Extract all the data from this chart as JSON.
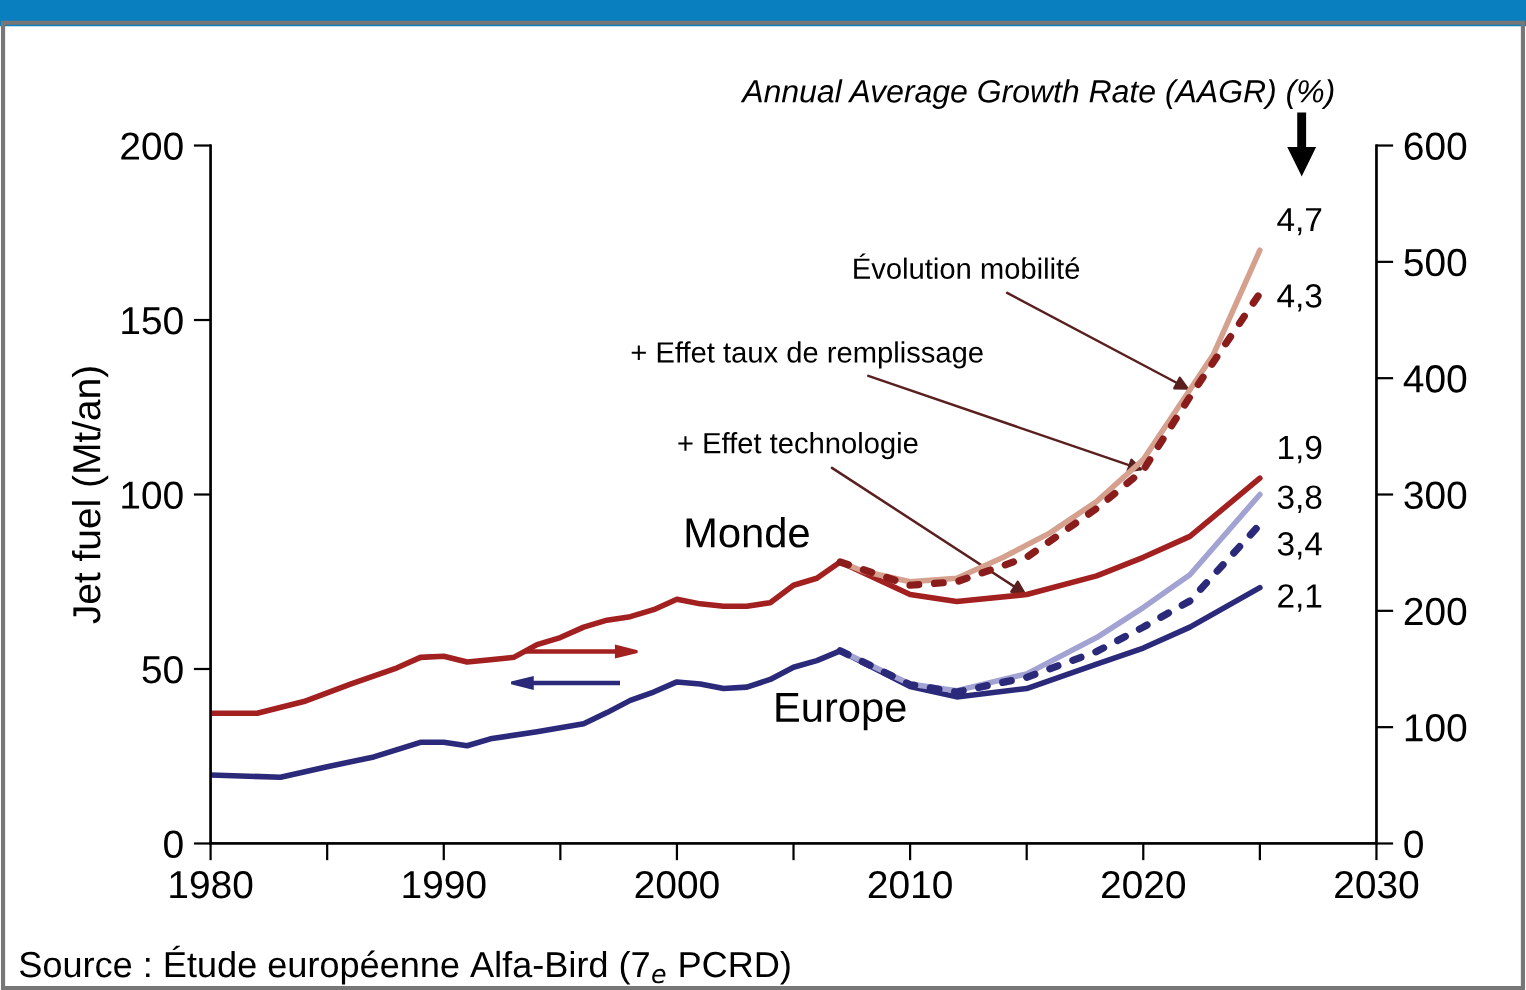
{
  "chart_data": {
    "type": "line",
    "ylabel": "Jet fuel (Mt/an)",
    "xlim": [
      1980,
      2030
    ],
    "xticks": [
      1980,
      {
        "value": 1985,
        "label": null
      },
      1990,
      {
        "value": 1995,
        "label": null
      },
      2000,
      {
        "value": 2005,
        "label": null
      },
      2010,
      {
        "value": 2015,
        "label": null
      },
      2020,
      {
        "value": 2025,
        "label": null
      },
      2030
    ],
    "ylim": [
      0,
      200
    ],
    "yticks": [
      0,
      50,
      100,
      150,
      200
    ],
    "y2lim": [
      0,
      600
    ],
    "y2ticks": [
      0,
      100,
      200,
      300,
      400,
      500,
      600
    ],
    "grid": false,
    "legend": false,
    "marker": "none",
    "series": [
      {
        "axis": "y2",
        "color": "#a32020",
        "line_style": "solid",
        "x": [
          1980,
          1982,
          1984,
          1986,
          1988,
          1989,
          1990,
          1991,
          1992,
          1993,
          1994,
          1995,
          1996,
          1997,
          1998,
          1999,
          2000,
          2001,
          2002,
          2003,
          2004,
          2005,
          2006,
          2007,
          2010,
          2012,
          2015,
          2018,
          2020,
          2022,
          2025
        ],
        "values": [
          112,
          112,
          122,
          137,
          151,
          160,
          161,
          156,
          158,
          160,
          171,
          177,
          186,
          192,
          195,
          201,
          210,
          206,
          204,
          204,
          207,
          222,
          228,
          242,
          214,
          208,
          214,
          230,
          246,
          264,
          314
        ]
      },
      {
        "axis": "y2",
        "color": "#d6a08e",
        "line_style": "solid",
        "x": [
          2007,
          2008,
          2010,
          2012,
          2014,
          2016,
          2018,
          2020,
          2022,
          2023,
          2025
        ],
        "values": [
          242,
          234,
          225,
          228,
          246,
          267,
          294,
          330,
          390,
          420,
          510
        ]
      },
      {
        "axis": "y2",
        "color": "#8a1c1c",
        "line_style": "dotted",
        "x": [
          2007,
          2010,
          2012,
          2015,
          2018,
          2020,
          2022,
          2025
        ],
        "values": [
          242,
          222,
          225,
          246,
          288,
          321,
          384,
          473
        ]
      },
      {
        "axis": "y",
        "color": "#2b2a7a",
        "line_style": "solid",
        "x": [
          1980,
          1983,
          1985,
          1987,
          1989,
          1990,
          1991,
          1992,
          1994,
          1996,
          1997,
          1998,
          1999,
          2000,
          2001,
          2002,
          2003,
          2004,
          2005,
          2006,
          2007,
          2010,
          2012,
          2015,
          2018,
          2020,
          2022,
          2025
        ],
        "values": [
          19.6,
          19,
          22,
          24.8,
          29,
          29,
          28,
          30,
          32,
          34.3,
          37.5,
          41,
          43.4,
          46.3,
          45.7,
          44.4,
          44.8,
          47,
          50.5,
          52.4,
          55.2,
          45,
          42,
          44.4,
          51.4,
          56,
          62,
          73.3
        ]
      },
      {
        "axis": "y",
        "color": "#a3a3d3",
        "line_style": "solid",
        "x": [
          2007,
          2010,
          2012,
          2015,
          2018,
          2020,
          2022,
          2025
        ],
        "values": [
          55.2,
          45.7,
          43.8,
          48.6,
          59,
          67.6,
          77,
          100
        ]
      },
      {
        "axis": "y",
        "color": "#2b2a7a",
        "line_style": "dotted",
        "x": [
          2007,
          2010,
          2012,
          2015,
          2018,
          2020,
          2022,
          2025
        ],
        "values": [
          55.2,
          45.5,
          43.4,
          47.6,
          55,
          62,
          69.5,
          91.4
        ]
      }
    ],
    "annotations": [
      "Annual Average Growth Rate (AAGR) (%)",
      {
        "text": "Évolution mobilité",
        "x": 2022,
        "y": 130
      },
      {
        "text": "+ Effet taux de remplissage",
        "x": 2020,
        "y": 107
      },
      {
        "text": "+ Effet technologie",
        "x": 2015,
        "y": 71.3
      },
      {
        "text": "4,7",
        "x": 2025,
        "y": 170
      },
      {
        "text": "4,3",
        "x": 2025,
        "y": 157.7
      },
      {
        "text": "1,9",
        "x": 2025,
        "y": 104.7
      },
      {
        "text": "3,8",
        "x": 2025,
        "y": 100
      },
      {
        "text": "3,4",
        "x": 2025,
        "y": 91.4
      },
      {
        "text": "2,1",
        "x": 2025,
        "y": 73.3
      },
      "Monde",
      "Europe",
      "Source : Étude européenne Alfa-Bird (7$_{e}$ PCRD)"
    ]
  }
}
